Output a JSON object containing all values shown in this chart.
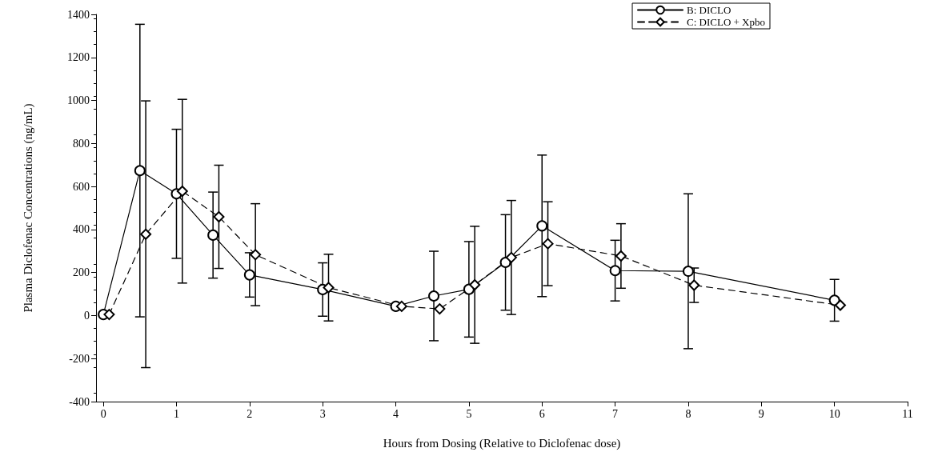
{
  "chart_data": {
    "type": "line",
    "xlabel": "Hours from Dosing (Relative to Diclofenac dose)",
    "ylabel": "Plasma Diclofenac Concentrations (ng/mL)",
    "xlim": [
      -0.1,
      11
    ],
    "xticks": [
      0,
      1,
      2,
      3,
      4,
      5,
      6,
      7,
      8,
      9,
      10,
      11
    ],
    "ylim": [
      -400,
      1400
    ],
    "yticks": [
      -400,
      -200,
      0,
      200,
      400,
      600,
      800,
      1000,
      1200,
      1400
    ],
    "grid": false,
    "legend": "top right",
    "series": [
      {
        "name": "B: DICLO",
        "color": "#000000",
        "marker": "circle",
        "line_style": "solid",
        "x": [
          0,
          0.5,
          1,
          1.5,
          2,
          3,
          4,
          4.52,
          5,
          5.5,
          6,
          7,
          8,
          10
        ],
        "values": [
          5,
          674,
          566,
          374,
          189,
          121,
          43,
          91,
          122,
          247,
          417,
          209,
          206,
          71
        ],
        "errors": [
          null,
          680,
          300,
          200,
          103,
          124,
          null,
          208,
          222,
          222,
          329,
          141,
          360,
          97
        ]
      },
      {
        "name": "C: DICLO + Xpbo",
        "color": "#000000",
        "marker": "diamond",
        "line_style": "dashed",
        "x": [
          0.08,
          0.58,
          1.08,
          1.58,
          2.08,
          3.08,
          4.08,
          4.6,
          5.08,
          5.58,
          6.08,
          7.08,
          8.08,
          10.08
        ],
        "values": [
          5,
          378,
          578,
          459,
          283,
          130,
          43,
          31,
          143,
          270,
          334,
          277,
          141,
          48
        ],
        "errors": [
          null,
          620,
          427,
          240,
          237,
          155,
          null,
          null,
          272,
          265,
          195,
          150,
          80,
          null
        ]
      }
    ]
  }
}
